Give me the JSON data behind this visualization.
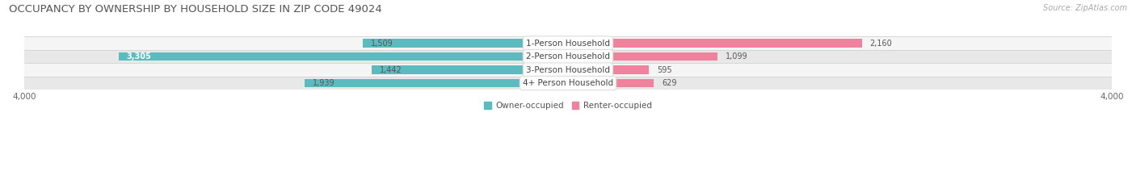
{
  "title": "OCCUPANCY BY OWNERSHIP BY HOUSEHOLD SIZE IN ZIP CODE 49024",
  "source": "Source: ZipAtlas.com",
  "categories": [
    "1-Person Household",
    "2-Person Household",
    "3-Person Household",
    "4+ Person Household"
  ],
  "owner_values": [
    1509,
    3305,
    1442,
    1939
  ],
  "renter_values": [
    2160,
    1099,
    595,
    629
  ],
  "axis_max": 4000,
  "owner_color": "#5bbcbf",
  "renter_color": "#f0829e",
  "owner_label": "Owner-occupied",
  "renter_label": "Renter-occupied",
  "row_bg_colors": [
    "#f5f5f5",
    "#e8e8e8",
    "#f5f5f5",
    "#e8e8e8"
  ],
  "title_fontsize": 9.5,
  "source_fontsize": 7,
  "label_fontsize": 7.5,
  "value_fontsize": 7,
  "axis_fontsize": 7.5,
  "legend_fontsize": 7.5
}
